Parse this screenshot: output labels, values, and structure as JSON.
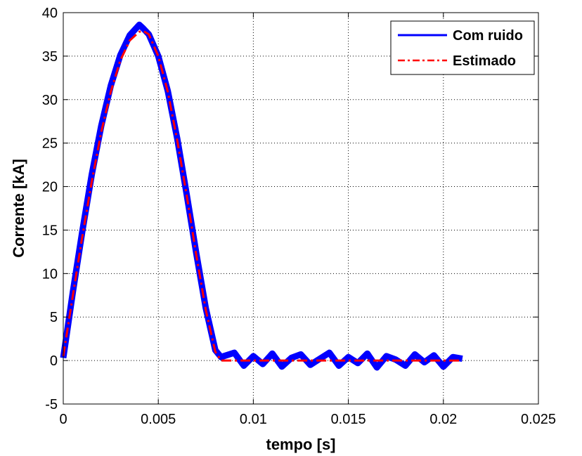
{
  "chart_data": {
    "type": "line",
    "title": "",
    "xlabel": "tempo [s]",
    "ylabel": "Corrente [kA]",
    "xlim": [
      0,
      0.025
    ],
    "ylim": [
      -5,
      40
    ],
    "xticks": [
      0,
      0.005,
      0.01,
      0.015,
      0.02,
      0.025
    ],
    "xtick_labels": [
      "0",
      "0.005",
      "0.01",
      "0.015",
      "0.02",
      "0.025"
    ],
    "yticks": [
      -5,
      0,
      5,
      10,
      15,
      20,
      25,
      30,
      35,
      40
    ],
    "ytick_labels": [
      "-5",
      "0",
      "5",
      "10",
      "15",
      "20",
      "25",
      "30",
      "35",
      "40"
    ],
    "grid": true,
    "legend_position": "top-right",
    "series": [
      {
        "name": "Com ruido",
        "color": "#0000ff",
        "style": "solid",
        "x": [
          0,
          0.0005,
          0.001,
          0.0015,
          0.002,
          0.0025,
          0.003,
          0.0035,
          0.004,
          0.0042,
          0.0045,
          0.005,
          0.0055,
          0.006,
          0.0065,
          0.007,
          0.0075,
          0.008,
          0.0083,
          0.009,
          0.0095,
          0.01,
          0.0105,
          0.011,
          0.0115,
          0.012,
          0.0125,
          0.013,
          0.0135,
          0.014,
          0.0145,
          0.015,
          0.0155,
          0.016,
          0.0165,
          0.017,
          0.0175,
          0.018,
          0.0185,
          0.019,
          0.0195,
          0.02,
          0.0205,
          0.021
        ],
        "y": [
          0.3,
          7.8,
          14.8,
          21.4,
          27.0,
          31.6,
          35.1,
          37.4,
          38.6,
          38.2,
          37.5,
          35.0,
          31.0,
          25.5,
          19.0,
          12.3,
          6.0,
          1.2,
          0.4,
          0.9,
          -0.6,
          0.5,
          -0.4,
          0.8,
          -0.7,
          0.3,
          0.7,
          -0.5,
          0.2,
          0.9,
          -0.6,
          0.4,
          -0.3,
          0.8,
          -0.8,
          0.5,
          0.1,
          -0.6,
          0.7,
          -0.2,
          0.6,
          -0.7,
          0.4,
          0.2
        ]
      },
      {
        "name": "Estimado",
        "color": "#ff0000",
        "style": "dashdot",
        "x": [
          0,
          0.0005,
          0.001,
          0.0015,
          0.002,
          0.0025,
          0.003,
          0.0035,
          0.004,
          0.0042,
          0.0045,
          0.005,
          0.0055,
          0.006,
          0.0065,
          0.007,
          0.0075,
          0.008,
          0.0083,
          0.009,
          0.01,
          0.012,
          0.014,
          0.016,
          0.018,
          0.02,
          0.021
        ],
        "y": [
          0.5,
          7.4,
          14.2,
          20.6,
          26.3,
          30.9,
          34.5,
          36.8,
          37.8,
          37.9,
          37.5,
          35.0,
          30.9,
          25.3,
          18.9,
          12.1,
          5.8,
          1.0,
          0.0,
          0.0,
          0.0,
          0.0,
          0.0,
          0.0,
          0.0,
          0.0,
          0.0
        ]
      }
    ]
  }
}
